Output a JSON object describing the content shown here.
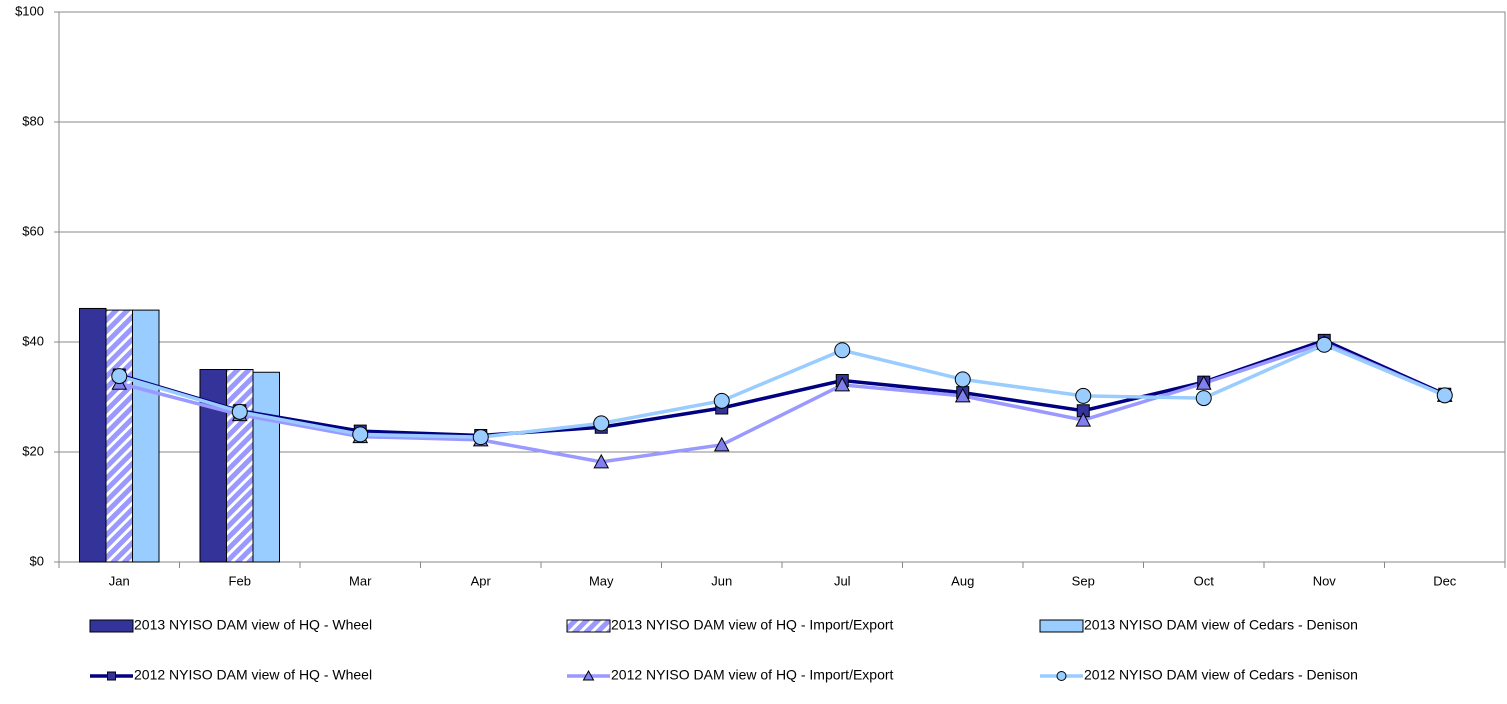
{
  "chart_data": {
    "type": "combo",
    "categories": [
      "Jan",
      "Feb",
      "Mar",
      "Apr",
      "May",
      "Jun",
      "Jul",
      "Aug",
      "Sep",
      "Oct",
      "Nov",
      "Dec"
    ],
    "ylim": [
      0,
      100
    ],
    "yticks": [
      {
        "value": 0,
        "label": "$0"
      },
      {
        "value": 20,
        "label": "$20"
      },
      {
        "value": 40,
        "label": "$40"
      },
      {
        "value": 60,
        "label": "$60"
      },
      {
        "value": 80,
        "label": "$80"
      },
      {
        "value": 100,
        "label": "$100"
      }
    ],
    "grid": true,
    "legend": "bottom",
    "series": [
      {
        "name": "2013 NYISO DAM view of HQ - Wheel",
        "type": "bar",
        "color": "#333399",
        "pattern": "solid",
        "values": [
          46.1,
          35.0,
          null,
          null,
          null,
          null,
          null,
          null,
          null,
          null,
          null,
          null
        ]
      },
      {
        "name": "2013 NYISO DAM view of HQ - Import/Export",
        "type": "bar",
        "color": "#9999ff",
        "pattern": "diagonal",
        "values": [
          45.8,
          35.0,
          null,
          null,
          null,
          null,
          null,
          null,
          null,
          null,
          null,
          null
        ]
      },
      {
        "name": "2013 NYISO DAM view of Cedars - Denison",
        "type": "bar",
        "color": "#99ccff",
        "pattern": "solid",
        "values": [
          45.8,
          34.5,
          null,
          null,
          null,
          null,
          null,
          null,
          null,
          null,
          null,
          null
        ]
      },
      {
        "name": "2012 NYISO DAM view of HQ - Wheel",
        "type": "line",
        "color": "#000080",
        "marker": "square",
        "marker_color": "#333399",
        "values": [
          34.0,
          27.5,
          23.8,
          23.0,
          24.5,
          28.0,
          33.0,
          30.8,
          27.5,
          32.7,
          40.3,
          30.5
        ]
      },
      {
        "name": "2012 NYISO DAM view of HQ - Import/Export",
        "type": "line",
        "color": "#9999ff",
        "marker": "triangle",
        "marker_color": "#8080ee",
        "values": [
          32.5,
          26.8,
          22.8,
          22.2,
          18.2,
          21.3,
          32.2,
          30.2,
          25.8,
          32.5,
          39.8,
          30.3
        ]
      },
      {
        "name": "2012 NYISO DAM view of Cedars - Denison",
        "type": "line",
        "color": "#99ccff",
        "marker": "circle",
        "marker_color": "#99ccff",
        "values": [
          33.8,
          27.3,
          23.2,
          22.7,
          25.2,
          29.3,
          38.5,
          33.2,
          30.2,
          29.8,
          39.5,
          30.3
        ]
      }
    ]
  }
}
